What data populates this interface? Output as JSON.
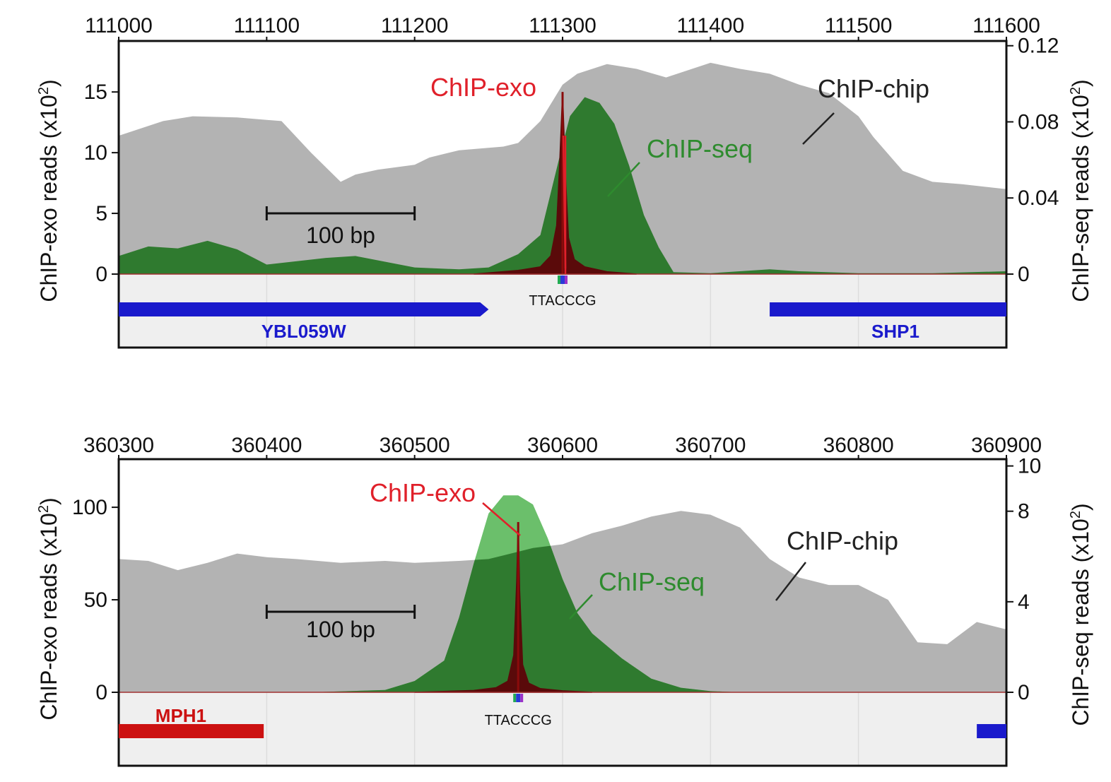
{
  "colors": {
    "chip_chip": "#b3b3b3",
    "chip_seq": "#2f7a2f",
    "chip_seq_light": "#6bbf6b",
    "chip_exo": "#5a0a0a",
    "label_exo": "#e0202a",
    "label_seq": "#2e8b2e",
    "label_chip": "#222222",
    "gene_blue": "#1a1acc",
    "gene_red": "#cc1111",
    "track_bg": "#efefef"
  },
  "chart_data": [
    {
      "type": "area",
      "x_top_ticks": [
        "111000",
        "111100",
        "111200",
        "111300",
        "111400",
        "111500",
        "111600"
      ],
      "xlim": [
        111000,
        111600
      ],
      "left_axis": {
        "label_main": "ChIP-exo reads (x10",
        "label_sup": "2",
        "label_end": ")",
        "ticks": [
          "0",
          "5",
          "10",
          "15"
        ],
        "lim": [
          0,
          19.2
        ]
      },
      "right_axis": {
        "label_main": "ChIP-seq reads (x10",
        "label_sup": "2",
        "label_end": ")",
        "ticks": [
          "0",
          "0.04",
          "0.08",
          "0.12"
        ],
        "lim": [
          0,
          0.1225
        ]
      },
      "series": [
        {
          "name": "ChIP-chip",
          "axis": "left",
          "x": [
            111000,
            111015,
            111030,
            111050,
            111080,
            111110,
            111130,
            111150,
            111160,
            111175,
            111200,
            111210,
            111230,
            111260,
            111270,
            111285,
            111300,
            111310,
            111330,
            111350,
            111370,
            111400,
            111420,
            111440,
            111460,
            111480,
            111500,
            111510,
            111530,
            111550,
            111570,
            111600
          ],
          "y": [
            11.4,
            12.0,
            12.6,
            13.0,
            12.9,
            12.6,
            10.0,
            7.6,
            8.2,
            8.6,
            9.0,
            9.6,
            10.2,
            10.5,
            10.8,
            12.6,
            15.6,
            16.5,
            17.3,
            16.9,
            16.2,
            17.4,
            16.9,
            16.5,
            15.6,
            14.9,
            13.0,
            11.3,
            8.5,
            7.6,
            7.4,
            7.0
          ]
        },
        {
          "name": "ChIP-seq",
          "axis": "right",
          "x": [
            111000,
            111020,
            111040,
            111060,
            111080,
            111100,
            111140,
            111160,
            111200,
            111230,
            111250,
            111270,
            111285,
            111300,
            111305,
            111315,
            111325,
            111335,
            111345,
            111355,
            111365,
            111375,
            111400,
            111440,
            111460,
            111500,
            111550,
            111600
          ],
          "y": [
            0.0095,
            0.0145,
            0.0135,
            0.0175,
            0.013,
            0.005,
            0.0085,
            0.0095,
            0.0035,
            0.0025,
            0.0035,
            0.0105,
            0.0205,
            0.068,
            0.083,
            0.093,
            0.09,
            0.079,
            0.057,
            0.031,
            0.014,
            0.001,
            0.0005,
            0.0025,
            0.0015,
            0.0005,
            0.0005,
            0.0015
          ]
        },
        {
          "name": "ChIP-exo",
          "axis": "left",
          "x": [
            111240,
            111270,
            111285,
            111292,
            111296,
            111298,
            111300,
            111302,
            111304,
            111308,
            111315,
            111330,
            111350
          ],
          "y": [
            0.0,
            0.3,
            0.6,
            1.5,
            4.0,
            9.0,
            15.0,
            8.0,
            3.0,
            1.2,
            0.6,
            0.2,
            0.0
          ]
        }
      ],
      "annotations": {
        "exo": "ChIP-exo",
        "seq": "ChIP-seq",
        "chip": "ChIP-chip",
        "scalebar": "100 bp",
        "scalebar_from": 111100,
        "scalebar_to": 111200,
        "motif": "TTACCCG",
        "motif_pos": 111300
      },
      "genes": [
        {
          "name": "YBL059W",
          "start": 111000,
          "end": 111250,
          "strand": "+",
          "color": "#1a1acc",
          "label_pos": 111125
        },
        {
          "name": "SHP1",
          "start": 111440,
          "end": 111600,
          "strand": "+",
          "color": "#1a1acc",
          "label_pos": 111525
        }
      ]
    },
    {
      "type": "area",
      "x_top_ticks": [
        "360300",
        "360400",
        "360500",
        "360600",
        "360700",
        "360800",
        "360900"
      ],
      "xlim": [
        360300,
        360900
      ],
      "left_axis": {
        "label_main": "ChIP-exo reads (x10",
        "label_sup": "2",
        "label_end": ")",
        "ticks": [
          "0",
          "50",
          "100"
        ],
        "lim": [
          0,
          126
        ]
      },
      "right_axis": {
        "label_main": "ChIP-seq reads (x10",
        "label_sup": "2",
        "label_end": ")",
        "ticks": [
          "0",
          "4",
          "8",
          "10"
        ],
        "lim": [
          0,
          10.3
        ]
      },
      "series": [
        {
          "name": "ChIP-chip",
          "axis": "left",
          "x": [
            360300,
            360320,
            360340,
            360360,
            360380,
            360400,
            360420,
            360450,
            360480,
            360500,
            360530,
            360550,
            360560,
            360580,
            360600,
            360620,
            360640,
            360660,
            360680,
            360700,
            360720,
            360740,
            360760,
            360780,
            360800,
            360820,
            360840,
            360860,
            360880,
            360900
          ],
          "y": [
            72,
            71,
            66,
            70,
            75,
            73,
            72,
            70,
            71,
            70,
            71,
            72,
            74,
            78,
            80,
            86,
            90,
            95,
            98,
            96,
            89,
            72,
            62,
            58,
            58,
            50,
            27,
            26,
            38,
            34
          ]
        },
        {
          "name": "ChIP-seq",
          "axis": "right",
          "x": [
            360300,
            360430,
            360480,
            360500,
            360520,
            360530,
            360540,
            360550,
            360560,
            360570,
            360580,
            360590,
            360600,
            360610,
            360620,
            360640,
            360660,
            360680,
            360700,
            360720,
            360900
          ],
          "y": [
            0,
            0,
            0.1,
            0.5,
            1.4,
            3.3,
            5.7,
            7.9,
            8.7,
            8.7,
            8.3,
            6.8,
            5.0,
            3.5,
            2.6,
            1.5,
            0.6,
            0.2,
            0.05,
            0,
            0
          ]
        },
        {
          "name": "ChIP-exo",
          "axis": "left",
          "x": [
            360500,
            360540,
            360555,
            360563,
            360567,
            360569,
            360570,
            360571,
            360573,
            360577,
            360585,
            360600,
            360620
          ],
          "y": [
            0,
            1.0,
            2.5,
            6,
            20,
            60,
            92,
            55,
            15,
            5,
            2,
            0.8,
            0
          ]
        }
      ],
      "annotations": {
        "exo": "ChIP-exo",
        "seq": "ChIP-seq",
        "chip": "ChIP-chip",
        "scalebar": "100 bp",
        "scalebar_from": 360400,
        "scalebar_to": 360500,
        "motif": "TTACCCG",
        "motif_pos": 360570
      },
      "genes": [
        {
          "name": "MPH1",
          "start": 360300,
          "end": 360398,
          "strand": "+",
          "color": "#cc1111",
          "label_pos": 360342
        },
        {
          "name": "",
          "start": 360880,
          "end": 360900,
          "strand": "+",
          "color": "#1a1acc",
          "label_pos": 360890
        }
      ]
    }
  ]
}
